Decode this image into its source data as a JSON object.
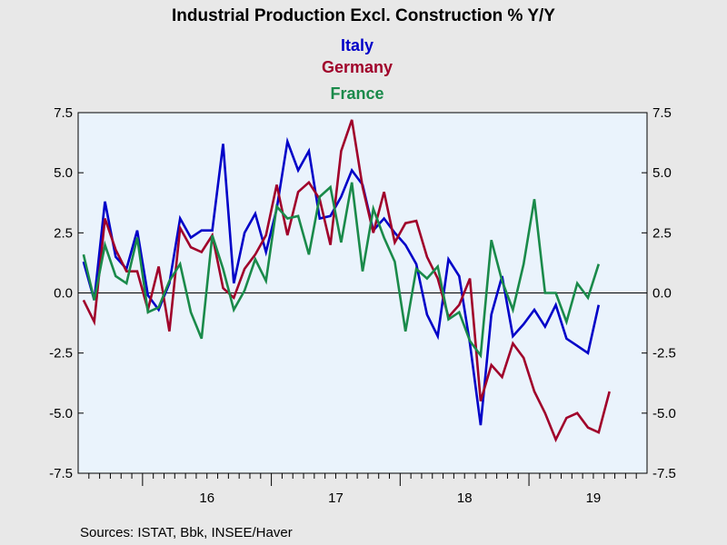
{
  "chart_data": {
    "type": "line",
    "title": "Industrial Production Excl. Construction % Y/Y",
    "source": "Sources:  ISTAT, Bbk, INSEE/Haver",
    "ylim": [
      -7.5,
      7.5
    ],
    "yticks": [
      7.5,
      5.0,
      2.5,
      0.0,
      -2.5,
      -5.0,
      -7.5
    ],
    "ytick_labels": [
      "7.5",
      "5.0",
      "2.5",
      "0.0",
      "-2.5",
      "-5.0",
      "-7.5"
    ],
    "xlim": [
      2015.5,
      2019.9167
    ],
    "xtick_labels": [
      {
        "year": 2016,
        "label": "16"
      },
      {
        "year": 2017,
        "label": "17"
      },
      {
        "year": 2018,
        "label": "18"
      },
      {
        "year": 2019,
        "label": "19"
      }
    ],
    "grid": false,
    "zero_line": true,
    "legend_placement": "top-center",
    "plot_background": "#eaf3fc",
    "months": [
      "2015-07",
      "2015-08",
      "2015-09",
      "2015-10",
      "2015-11",
      "2015-12",
      "2016-01",
      "2016-02",
      "2016-03",
      "2016-04",
      "2016-05",
      "2016-06",
      "2016-07",
      "2016-08",
      "2016-09",
      "2016-10",
      "2016-11",
      "2016-12",
      "2017-01",
      "2017-02",
      "2017-03",
      "2017-04",
      "2017-05",
      "2017-06",
      "2017-07",
      "2017-08",
      "2017-09",
      "2017-10",
      "2017-11",
      "2017-12",
      "2018-01",
      "2018-02",
      "2018-03",
      "2018-04",
      "2018-05",
      "2018-06",
      "2018-07",
      "2018-08",
      "2018-09",
      "2018-10",
      "2018-11",
      "2018-12",
      "2019-01",
      "2019-02",
      "2019-03",
      "2019-04",
      "2019-05",
      "2019-06",
      "2019-07",
      "2019-08",
      "2019-09",
      "2019-10"
    ],
    "series": [
      {
        "name": "Italy",
        "color": "#0000c8",
        "values": [
          1.3,
          -0.3,
          3.8,
          1.5,
          1.0,
          2.6,
          -0.1,
          -0.7,
          0.4,
          3.1,
          2.3,
          2.6,
          2.6,
          6.2,
          0.4,
          2.5,
          3.3,
          1.7,
          3.5,
          6.3,
          5.1,
          5.9,
          3.1,
          3.2,
          4.0,
          5.1,
          4.5,
          2.6,
          3.1,
          2.5,
          2.0,
          1.2,
          -0.9,
          -1.8,
          1.4,
          0.7,
          -2.1,
          -5.5,
          -0.9,
          0.7,
          -1.8,
          -1.3,
          -0.7,
          -1.4,
          -0.5,
          -1.9,
          -2.2,
          -2.5,
          -0.5
        ]
      },
      {
        "name": "Germany",
        "color": "#a0002a",
        "values": [
          -0.3,
          -1.2,
          3.1,
          1.8,
          0.9,
          0.9,
          -0.7,
          1.1,
          -1.6,
          2.7,
          1.9,
          1.7,
          2.4,
          0.2,
          -0.2,
          1.0,
          1.6,
          2.4,
          4.5,
          2.4,
          4.2,
          4.6,
          3.9,
          2.0,
          5.9,
          7.2,
          4.4,
          2.5,
          4.2,
          2.1,
          2.9,
          3.0,
          1.5,
          0.6,
          -1.0,
          -0.5,
          0.6,
          -4.5,
          -3.0,
          -3.5,
          -2.1,
          -2.7,
          -4.1,
          -5.0,
          -6.1,
          -5.2,
          -5.0,
          -5.6,
          -5.8,
          -4.1
        ]
      },
      {
        "name": "France",
        "color": "#1a8a4a",
        "values": [
          1.6,
          -0.3,
          2.0,
          0.7,
          0.4,
          2.3,
          -0.8,
          -0.6,
          0.5,
          1.2,
          -0.8,
          -1.9,
          2.4,
          1.0,
          -0.7,
          0.1,
          1.4,
          0.5,
          3.6,
          3.1,
          3.2,
          1.6,
          4.0,
          4.4,
          2.1,
          4.6,
          0.9,
          3.5,
          2.3,
          1.3,
          -1.6,
          1.0,
          0.6,
          1.1,
          -1.1,
          -0.8,
          -2.0,
          -2.6,
          2.2,
          0.5,
          -0.7,
          1.2,
          3.9,
          0.0,
          0.0,
          -1.2,
          0.4,
          -0.2,
          1.2
        ]
      }
    ]
  },
  "colors": {
    "page_background": "#e8e8e8",
    "axis": "#000000"
  }
}
